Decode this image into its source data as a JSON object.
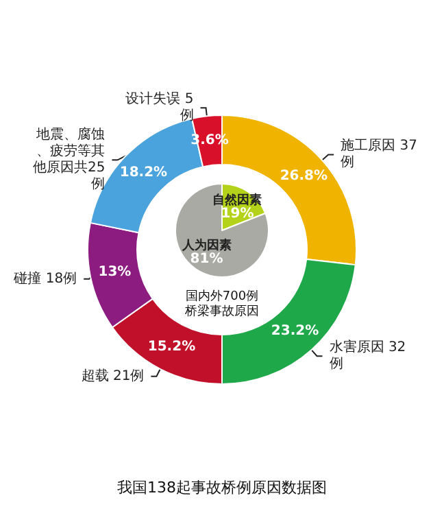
{
  "chart_data": [
    {
      "type": "donut",
      "title": "我国138起事故桥例原因数据图",
      "categories": [
        "施工原因 37例",
        "水害原因 32例",
        "超载 21例",
        "碰撞 18例",
        "地震、腐蚀、疲劳等其他原因共25例",
        "设计失误 5例"
      ],
      "values": [
        26.8,
        23.2,
        15.2,
        13,
        18.2,
        3.6
      ],
      "value_labels": [
        "26.8%",
        "23.2%",
        "15.2%",
        "13%",
        "18.2%",
        "3.6%"
      ],
      "colors": [
        "#f0b400",
        "#1fa84a",
        "#c0102a",
        "#8c1c80",
        "#4aa3dc",
        "#d8102a"
      ],
      "legend": false
    },
    {
      "type": "pie",
      "title": "国内外700例桥梁事故原因",
      "categories": [
        "自然因素",
        "人为因素"
      ],
      "values": [
        19,
        81
      ],
      "value_labels": [
        "19%",
        "81%"
      ],
      "colors": [
        "#b5d21a",
        "#a8aaa3"
      ],
      "legend": false
    }
  ]
}
